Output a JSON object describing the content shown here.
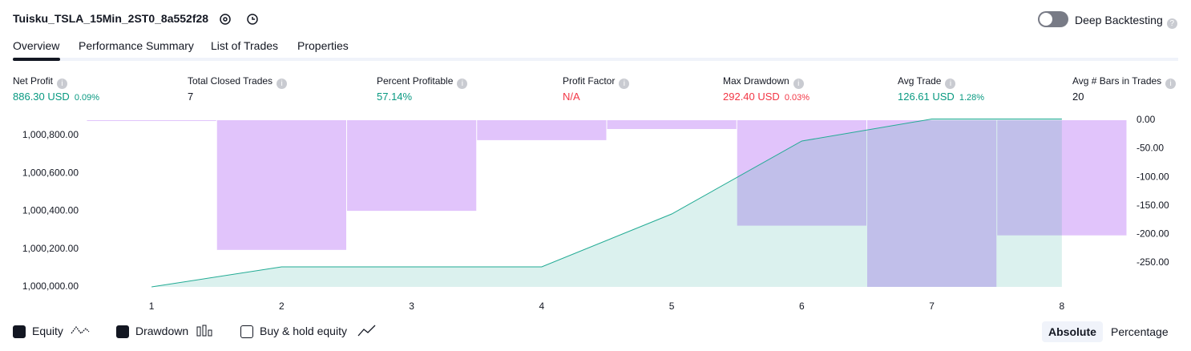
{
  "header": {
    "title": "Tuisku_TSLA_15Min_2ST0_8a552f28",
    "toggle": "Deep Backtesting"
  },
  "tabs": [
    "Overview",
    "Performance Summary",
    "List of Trades",
    "Properties"
  ],
  "metrics": [
    {
      "label": "Net Profit",
      "value": "886.30 USD",
      "change": "0.09%",
      "tone": "up"
    },
    {
      "label": "Total Closed Trades",
      "value": "7",
      "tone": "plain"
    },
    {
      "label": "Percent Profitable",
      "value": "57.14%",
      "tone": "up"
    },
    {
      "label": "Profit Factor",
      "value": "N/A",
      "tone": "down"
    },
    {
      "label": "Max Drawdown",
      "value": "292.40 USD",
      "change": "0.03%",
      "tone": "down"
    },
    {
      "label": "Avg Trade",
      "value": "126.61 USD",
      "change": "1.28%",
      "tone": "up"
    },
    {
      "label": "Avg # Bars in Trades",
      "value": "20",
      "tone": "plain"
    }
  ],
  "chart_data": {
    "type": "line",
    "categories": [
      "1",
      "2",
      "3",
      "4",
      "5",
      "6",
      "7",
      "8"
    ],
    "series": [
      {
        "name": "Equity",
        "color": "#22ab94",
        "values": [
          1000000,
          1000106,
          1000106,
          1000106,
          1000385,
          1000770,
          1000886.3,
          1000886.3
        ]
      },
      {
        "name": "Drawdown",
        "color": "#e1c4fb",
        "axis": "y2",
        "values": [
          0,
          -227.5,
          -159,
          -35,
          -15.5,
          -185,
          -292.4,
          -202
        ]
      }
    ],
    "ylim": [
      1000000,
      1000880
    ],
    "yticks": [
      {
        "value": 1000000,
        "label": "1,000,000.00"
      },
      {
        "value": 1000200,
        "label": "1,000,200.00"
      },
      {
        "value": 1000400,
        "label": "1,000,400.00"
      },
      {
        "value": 1000600,
        "label": "1,000,600.00"
      },
      {
        "value": 1000800,
        "label": "1,000,800.00"
      }
    ],
    "y2lim": [
      -292.4,
      0
    ],
    "y2ticks": [
      {
        "value": 0,
        "label": "0.00"
      },
      {
        "value": -50,
        "label": "-50.00"
      },
      {
        "value": -100,
        "label": "-100.00"
      },
      {
        "value": -150,
        "label": "-150.00"
      },
      {
        "value": -200,
        "label": "-200.00"
      },
      {
        "value": -250,
        "label": "-250.00"
      }
    ]
  },
  "footer": {
    "extra_toggle": "Buy & hold equity",
    "modes": [
      "Absolute",
      "Percentage"
    ]
  }
}
